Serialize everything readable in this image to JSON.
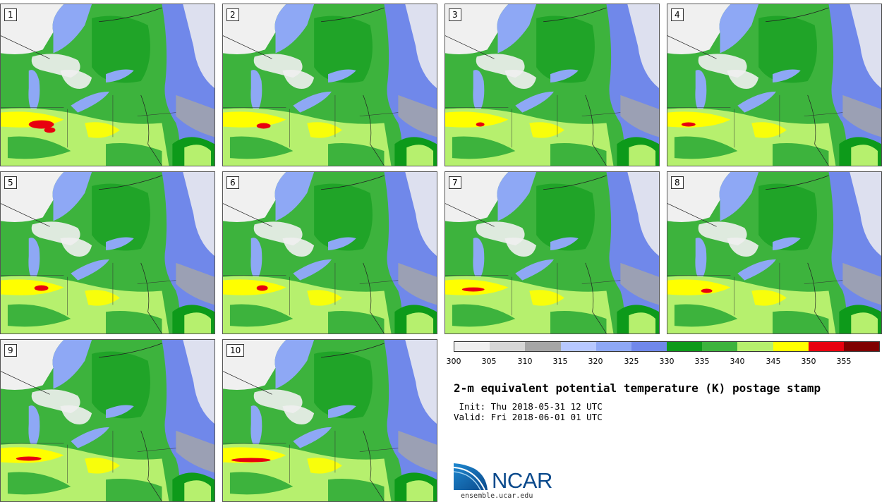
{
  "stamps": [
    {
      "label": "1"
    },
    {
      "label": "2"
    },
    {
      "label": "3"
    },
    {
      "label": "4"
    },
    {
      "label": "5"
    },
    {
      "label": "6"
    },
    {
      "label": "7"
    },
    {
      "label": "8"
    },
    {
      "label": "9"
    },
    {
      "label": "10"
    }
  ],
  "colorbar": {
    "ticks": [
      "300",
      "305",
      "310",
      "315",
      "320",
      "325",
      "330",
      "335",
      "340",
      "345",
      "350",
      "355"
    ],
    "colors": [
      "#f0f0f0",
      "#d6d6d6",
      "#a6a6a6",
      "#b7c8ff",
      "#8ea8f5",
      "#7088ea",
      "#0d9a1a",
      "#3db33d",
      "#b6f06e",
      "#ffff00",
      "#e8000f",
      "#800000"
    ]
  },
  "title": "2-m equivalent potential temperature (K) postage stamp",
  "init": " Init: Thu 2018-05-31 12 UTC",
  "valid": "Valid: Fri 2018-06-01 01 UTC",
  "logo": {
    "text": "NCAR",
    "site": "ensemble.ucar.edu"
  },
  "colors": {
    "land_green": "#3db33d",
    "dark_green": "#0d9a1a",
    "light_green": "#b6f06e",
    "yellow": "#ffff00",
    "red": "#e8000f",
    "blue": "#7088ea",
    "light_blue": "#8ea8f5",
    "gray": "#a6a6a6",
    "white": "#f0f0f0"
  }
}
